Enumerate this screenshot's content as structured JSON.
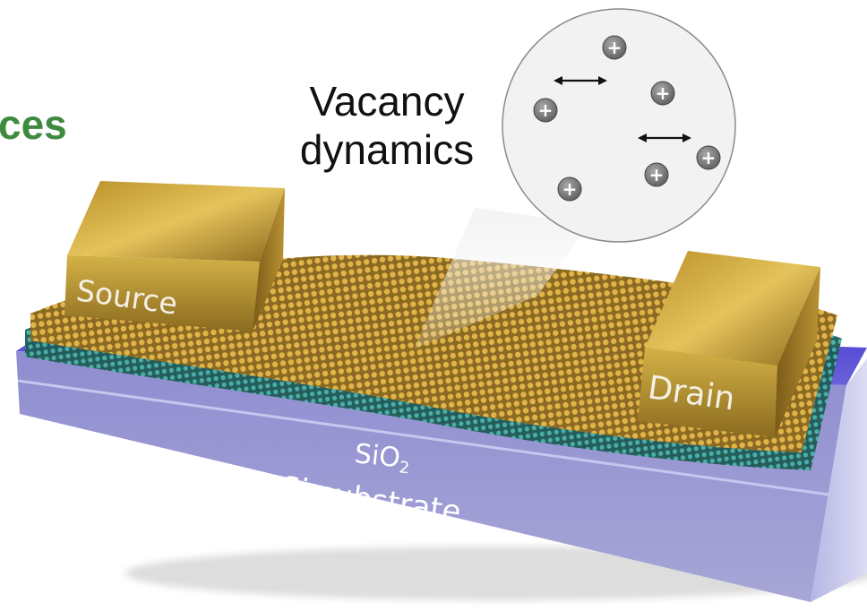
{
  "header": {
    "partial_title": "ces"
  },
  "inset": {
    "label_line1": "Vacancy",
    "label_line2": "dynamics",
    "vacancy_symbol": "+",
    "vacancy_count": 6,
    "arrow_count": 2
  },
  "device": {
    "source_label": "Source",
    "drain_label": "Drain",
    "oxide_label": "SiO",
    "oxide_subscript": "2",
    "substrate_label": "Si substrate"
  },
  "colors": {
    "title_green": "#3e8a3e",
    "gold": "#c9a53a",
    "substrate_purple": "#7a77c4",
    "oxide_blue": "#4a3ad8",
    "lattice_teal": "#3ea7a0",
    "lattice_gold": "#d9ac3a",
    "vacancy_gray": "#7a7a7a"
  }
}
